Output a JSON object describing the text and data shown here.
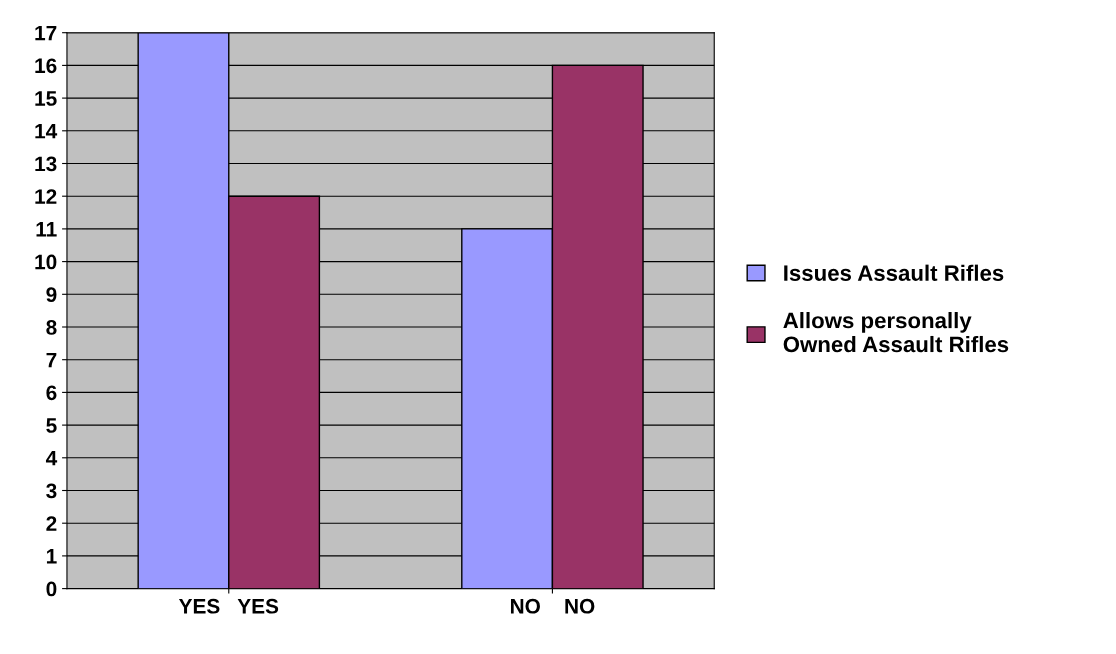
{
  "chart_data": {
    "type": "bar",
    "categories": [
      "YES   YES",
      "NO    NO"
    ],
    "series": [
      {
        "name": "Issues Assault Rifles",
        "color": "#9999ff",
        "values": [
          17,
          11
        ]
      },
      {
        "name": "Allows personally\nOwned Assault Rifles",
        "color": "#993366",
        "values": [
          12,
          16
        ]
      }
    ],
    "ylim": [
      0,
      17
    ],
    "yticks": [
      0,
      1,
      2,
      3,
      4,
      5,
      6,
      7,
      8,
      9,
      10,
      11,
      12,
      13,
      14,
      15,
      16,
      17
    ],
    "grid": "y",
    "legend": "right"
  }
}
